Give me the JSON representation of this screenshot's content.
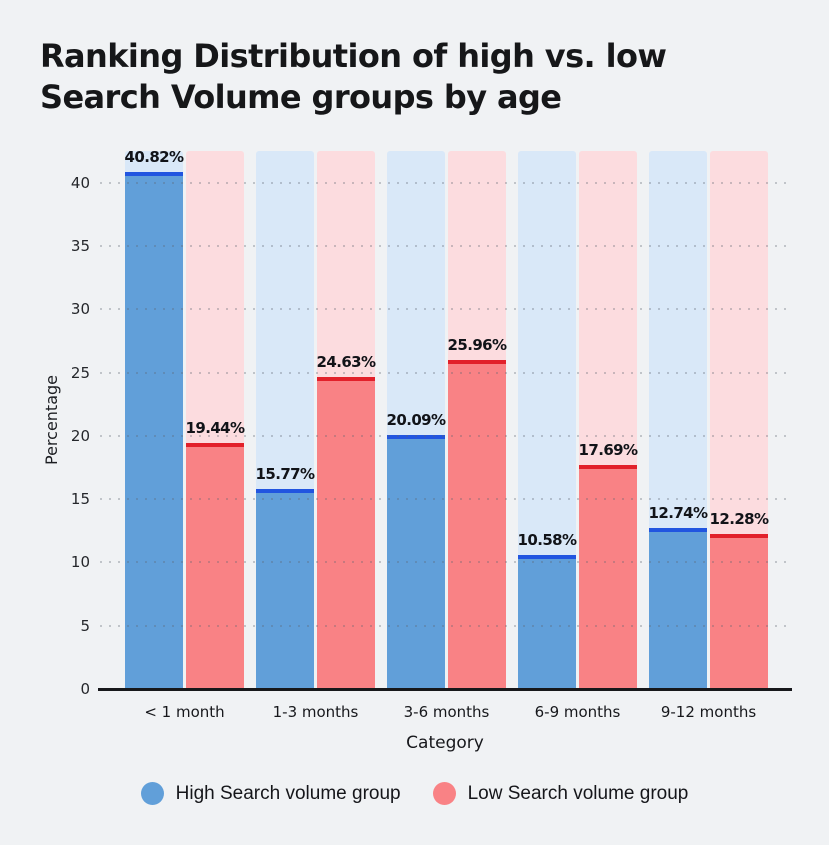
{
  "header": {
    "title_line1": "Ranking Distribution of high vs. low",
    "title_line2": "Search Volume groups by age"
  },
  "chart_data": {
    "type": "bar",
    "title": "Ranking Distribution of high vs. low Search Volume groups by age",
    "categories": [
      "< 1 month",
      "1-3 months",
      "3-6 months",
      "6-9 months",
      "9-12 months"
    ],
    "series": [
      {
        "name": "High Search volume group",
        "values": [
          40.82,
          15.77,
          20.09,
          10.58,
          12.74
        ],
        "bar_color": "#619FD9",
        "edge_color": "#2155E0",
        "track_color": "#D9E8F8"
      },
      {
        "name": "Low Search volume group",
        "values": [
          19.44,
          24.63,
          25.96,
          17.69,
          12.28
        ],
        "bar_color": "#F98285",
        "edge_color": "#E2202A",
        "track_color": "#FCDCDF"
      }
    ],
    "value_labels": [
      "40.82%",
      "19.44%",
      "15.77%",
      "24.63%",
      "20.09%",
      "25.96%",
      "10.58%",
      "17.69%",
      "12.74%",
      "12.28%"
    ],
    "value_label_suffix": "%",
    "xlabel": "Category",
    "ylabel": "Percentage",
    "ylim": [
      0,
      42.5
    ],
    "yticks": [
      0,
      5,
      10,
      15,
      20,
      25,
      30,
      35,
      40
    ],
    "grid": "horizontal-dotted",
    "legend_position": "bottom",
    "colors": {
      "background": "#F0F2F4",
      "axis": "#17181B",
      "grid": "#A6ABB4",
      "text": "#15161A"
    }
  }
}
